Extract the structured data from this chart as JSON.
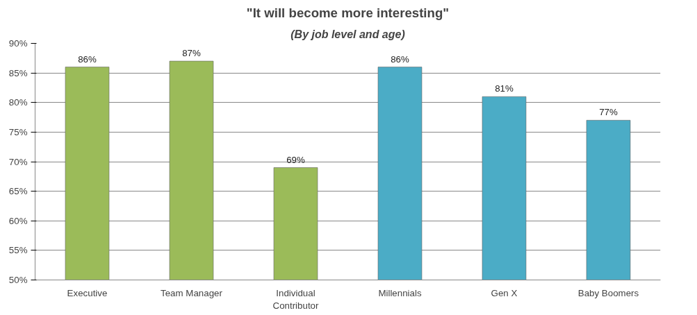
{
  "chart_data": {
    "type": "bar",
    "title": "\"It will become more interesting\"",
    "subtitle": "(By job level and age)",
    "categories": [
      "Executive",
      "Team Manager",
      "Individual\nContributor",
      "Millennials",
      "Gen X",
      "Baby Boomers"
    ],
    "values": [
      86,
      87,
      69,
      86,
      81,
      77
    ],
    "colors": [
      "#9bbb59",
      "#9bbb59",
      "#9bbb59",
      "#4bacc6",
      "#4bacc6",
      "#4bacc6"
    ],
    "ylim": [
      50,
      90
    ],
    "yticks": [
      {
        "value": 50,
        "label": "50%"
      },
      {
        "value": 55,
        "label": "55%"
      },
      {
        "value": 60,
        "label": "60%"
      },
      {
        "value": 65,
        "label": "65%"
      },
      {
        "value": 70,
        "label": "70%"
      },
      {
        "value": 75,
        "label": "75%"
      },
      {
        "value": 80,
        "label": "80%"
      },
      {
        "value": 85,
        "label": "85%"
      },
      {
        "value": 90,
        "label": "90%"
      }
    ],
    "value_labels": [
      "86%",
      "87%",
      "69%",
      "86%",
      "81%",
      "77%"
    ],
    "grid": "y"
  }
}
